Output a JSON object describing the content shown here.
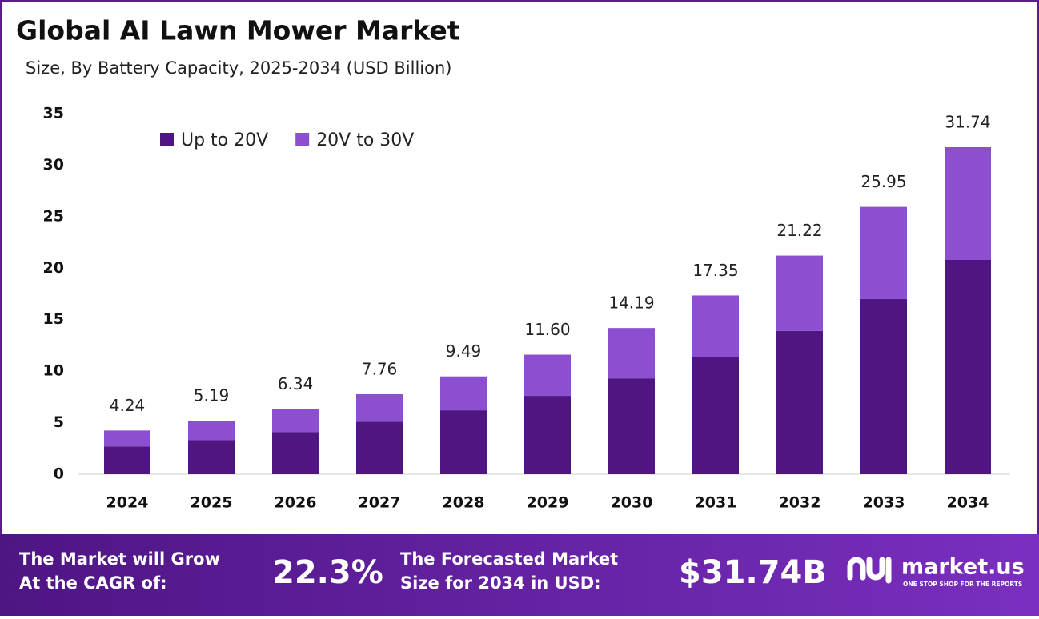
{
  "chart_data": {
    "type": "stacked_bar",
    "title": "Global AI Lawn Mower Market",
    "subtitle": "Size, By Battery Capacity, 2025-2034 (USD Billion)",
    "categories": [
      "2024",
      "2025",
      "2026",
      "2027",
      "2028",
      "2029",
      "2030",
      "2031",
      "2032",
      "2033",
      "2034"
    ],
    "series": [
      {
        "name": "Up to 20V",
        "color": "#4f1580",
        "values": [
          2.7,
          3.3,
          4.1,
          5.1,
          6.2,
          7.6,
          9.3,
          11.4,
          13.9,
          17.0,
          20.8
        ]
      },
      {
        "name": "20V to 30V",
        "color": "#8c4fd0",
        "values": [
          1.54,
          1.89,
          2.24,
          2.66,
          3.29,
          4.0,
          4.89,
          5.95,
          7.32,
          8.95,
          10.94
        ]
      }
    ],
    "totals": [
      4.24,
      5.19,
      6.34,
      7.76,
      9.49,
      11.6,
      14.19,
      17.35,
      21.22,
      25.95,
      31.74
    ],
    "total_labels": [
      "4.24",
      "5.19",
      "6.34",
      "7.76",
      "9.49",
      "11.60",
      "14.19",
      "17.35",
      "21.22",
      "25.95",
      "31.74"
    ],
    "ylim": [
      0,
      35
    ],
    "yticks": [
      0,
      5,
      10,
      15,
      20,
      25,
      30,
      35
    ],
    "grid": false,
    "legend": "top-left"
  },
  "footer": {
    "cagr_text_1": "The Market will Grow",
    "cagr_text_2": "At the CAGR of:",
    "cagr_value": "22.3%",
    "forecast_text_1": "The Forecasted Market",
    "forecast_text_2": "Size for 2034 in USD:",
    "forecast_value": "$31.74B",
    "brand": "market.us",
    "tagline": "ONE STOP SHOP FOR THE REPORTS"
  }
}
